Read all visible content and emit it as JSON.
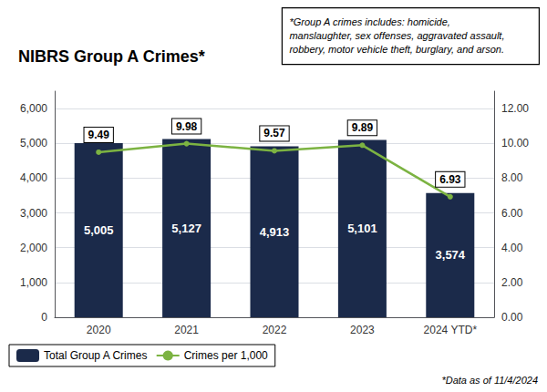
{
  "chart_data": {
    "type": "bar",
    "title": "NIBRS Group A Crimes*",
    "annotations": [
      "*Group A crimes includes: homicide,\nmanslaughter, sex offenses, aggravated assault,\nrobbery, motor vehicle theft, burglary, and arson.",
      "*Data as of 11/4/2024"
    ],
    "categories": [
      "2020",
      "2021",
      "2022",
      "2023",
      "2024 YTD*"
    ],
    "series": [
      {
        "name": "Total Group A Crimes",
        "type": "bar",
        "color": "#1B2A4A",
        "values": [
          5005,
          5127,
          4913,
          5101,
          3574
        ],
        "value_labels": [
          "5,005",
          "5,127",
          "4,913",
          "5,101",
          "3,574"
        ]
      },
      {
        "name": "Crimes per 1,000",
        "type": "line",
        "axis": "y2",
        "color": "#7CB342",
        "marker": "circle",
        "values": [
          9.49,
          9.98,
          9.57,
          9.89,
          6.93
        ]
      }
    ],
    "ylim": [
      0,
      6500
    ],
    "yticks": [
      0,
      {
        "value": 1000,
        "label": "1,000"
      },
      {
        "value": 2000,
        "label": "2,000"
      },
      {
        "value": 3000,
        "label": "3,000"
      },
      {
        "value": 4000,
        "label": "4,000"
      },
      {
        "value": 5000,
        "label": "5,000"
      },
      {
        "value": 6000,
        "label": "6,000"
      }
    ],
    "y2lim": [
      0,
      13
    ],
    "y2ticks": [
      {
        "value": 0,
        "label": "0.00"
      },
      {
        "value": 2,
        "label": "2.00"
      },
      {
        "value": 4,
        "label": "4.00"
      },
      {
        "value": 6,
        "label": "6.00"
      },
      {
        "value": 8,
        "label": "8.00"
      },
      {
        "value": 10,
        "label": "10.00"
      },
      {
        "value": 12,
        "label": "12.00"
      }
    ],
    "grid": true,
    "legend": "lower left",
    "data_labels": true
  }
}
